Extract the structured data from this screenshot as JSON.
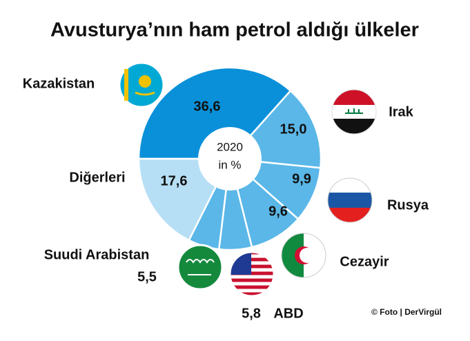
{
  "chart_data": {
    "type": "donut",
    "title": "Avusturya’nın ham petrol aldığı ülkeler",
    "center_text": [
      "2020",
      "in %"
    ],
    "categories": [
      "Kazakistan",
      "Irak",
      "Rusya",
      "Cezayir",
      "ABD",
      "Suudi Arabistan",
      "Diğerleri"
    ],
    "values": [
      36.6,
      15.0,
      9.9,
      9.6,
      5.8,
      5.5,
      17.6
    ],
    "value_labels": [
      "36,6",
      "15,0",
      "9,9",
      "9,6",
      "5,8",
      "5,5",
      "17,6"
    ],
    "colors": [
      "#0a90d9",
      "#5ab7e8",
      "#5ab7e8",
      "#5ab7e8",
      "#5ab7e8",
      "#5ab7e8",
      "#b6dff5"
    ],
    "credit": "© Foto | DerVirgül"
  }
}
